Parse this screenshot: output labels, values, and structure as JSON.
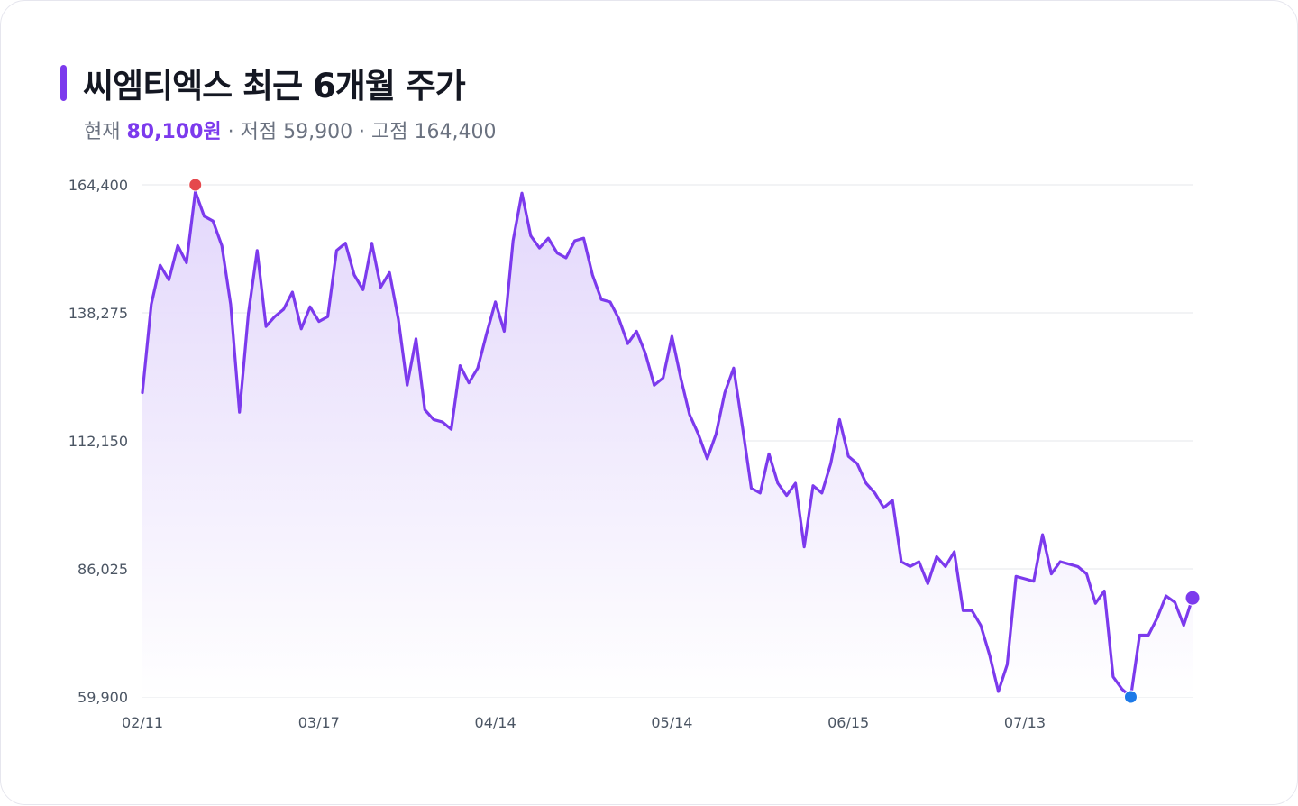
{
  "header": {
    "title": "씨엠티엑스 최근 6개월 주가",
    "current_label": "현재",
    "current_value": "80,100원",
    "sep1": " · ",
    "low_text": "저점 59,900",
    "sep2": " · ",
    "high_text": "고점 164,400"
  },
  "colors": {
    "line": "#7c3aed",
    "area_top": "#e2d6fb",
    "high_marker": "#e5484d",
    "low_marker": "#1d7ae8",
    "last_marker": "#7c3aed",
    "grid": "#e5e7eb"
  },
  "chart_data": {
    "type": "area",
    "y_ticks": [
      "164,400",
      "138,275",
      "112,150",
      "86,025",
      "59,900"
    ],
    "y_tick_values": [
      164400,
      138275,
      112150,
      86025,
      59900
    ],
    "x_ticks": [
      "02/11",
      "03/17",
      "04/14",
      "05/14",
      "06/15",
      "07/13"
    ],
    "x_tick_index": [
      0,
      20,
      40,
      60,
      80,
      100
    ],
    "ylim": [
      59900,
      164400
    ],
    "grid": true,
    "series": [
      {
        "values": [
          122000,
          140000,
          148000,
          145000,
          152000,
          148500,
          163000,
          158000,
          157000,
          152000,
          140000,
          118000,
          138000,
          151000,
          135500,
          137500,
          139000,
          142500,
          135000,
          139500,
          136500,
          137500,
          151000,
          152500,
          146000,
          143000,
          152500,
          143500,
          146500,
          137000,
          123500,
          133000,
          118500,
          116500,
          116000,
          114500,
          127500,
          124000,
          127000,
          134000,
          140500,
          134500,
          153000,
          162700,
          154000,
          151500,
          153500,
          150500,
          149500,
          153000,
          153500,
          146000,
          141000,
          140500,
          137000,
          132000,
          134500,
          130000,
          123500,
          125000,
          133500,
          125000,
          117500,
          113500,
          108500,
          113500,
          122000,
          127000,
          115000,
          102500,
          101500,
          109500,
          103500,
          101000,
          103500,
          90500,
          103000,
          101500,
          107500,
          116500,
          109000,
          107500,
          103500,
          101500,
          98500,
          100000,
          87500,
          86500,
          87500,
          83000,
          88500,
          86500,
          89500,
          77500,
          77500,
          74500,
          68500,
          61000,
          66500,
          84500,
          84000,
          83500,
          93000,
          85000,
          87500,
          87000,
          86500,
          85000,
          79000,
          81500,
          64000,
          61500,
          59900,
          72500,
          72500,
          76000,
          80500,
          79200,
          74500,
          80100
        ]
      }
    ],
    "markers": {
      "high": {
        "index": 6,
        "value": 164400
      },
      "low": {
        "index": 112,
        "value": 59900
      },
      "last": {
        "index": 119,
        "value": 80100
      }
    }
  }
}
